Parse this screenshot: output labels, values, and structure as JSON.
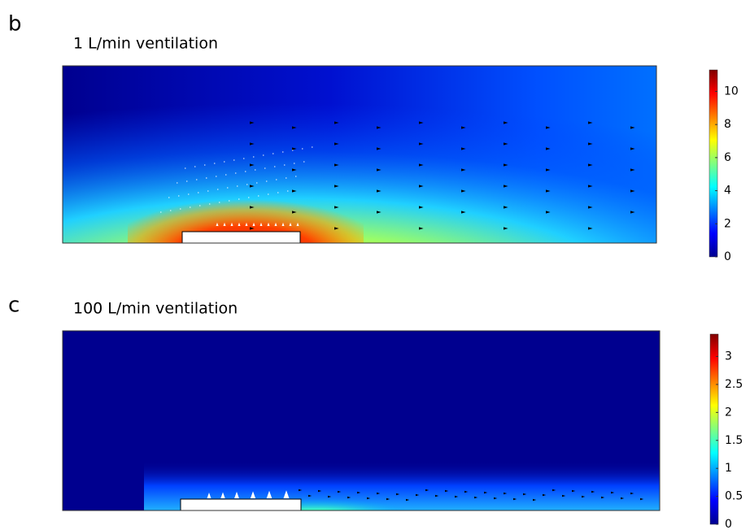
{
  "chart_data": [
    {
      "type": "heatmap",
      "panel_label": "b",
      "title": "1 L/min ventilation",
      "clim": [
        0,
        11.3
      ],
      "cticks": [
        0,
        2,
        4,
        6,
        8,
        10
      ]
    },
    {
      "type": "heatmap",
      "panel_label": "c",
      "title": "100 L/min ventilation",
      "clim": [
        0,
        3.4
      ],
      "cticks": [
        0,
        0.5,
        1,
        1.5,
        2,
        2.5,
        3
      ]
    }
  ]
}
